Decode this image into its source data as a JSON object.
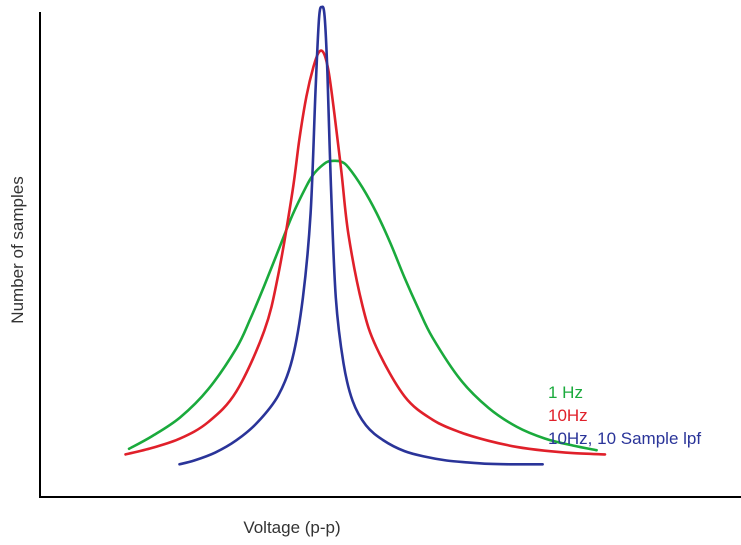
{
  "chart_data": {
    "type": "line",
    "title": "",
    "xlabel": "Voltage (p-p)",
    "ylabel": "Number of samples",
    "grid": false,
    "xlim": [
      0,
      100
    ],
    "ylim": [
      0,
      100
    ],
    "legend_position": "right",
    "series": [
      {
        "name": "1 Hz",
        "color": "#1aaa3c",
        "x": [
          12.7,
          16,
          20,
          24,
          28,
          30,
          32,
          34,
          36,
          38,
          39,
          40,
          41,
          42,
          43,
          44,
          46,
          48,
          50,
          52,
          54,
          56,
          60,
          64,
          68,
          72,
          76,
          79.4
        ],
        "y": [
          5.8,
          8.5,
          12.5,
          18.5,
          27.2,
          33.5,
          40.6,
          48.1,
          55.6,
          61.8,
          64.3,
          65.9,
          67.0,
          67.2,
          67.0,
          65.8,
          61.5,
          56.1,
          49.6,
          42.3,
          35.6,
          29.5,
          20.5,
          14.5,
          10.5,
          8.0,
          6.5,
          5.5
        ]
      },
      {
        "name": "10Hz",
        "color": "#e0202a",
        "x": [
          12.2,
          16,
          20,
          24,
          28,
          32,
          34,
          36,
          37,
          38,
          39,
          39.8,
          40.5,
          41.2,
          42,
          43,
          44,
          46,
          48,
          52,
          56,
          60,
          64,
          68,
          72,
          76,
          80.6
        ],
        "y": [
          4.6,
          6.0,
          8.0,
          11.5,
          18.0,
          31.0,
          43.0,
          60.5,
          71.8,
          80.9,
          87.2,
          90.4,
          90.1,
          86.0,
          77.2,
          64.8,
          51.5,
          36.3,
          27.4,
          17.0,
          12.0,
          9.3,
          7.5,
          6.2,
          5.4,
          4.9,
          4.6
        ]
      },
      {
        "name": "10Hz, 10 Sample lpf",
        "color": "#2a3499",
        "x": [
          19.9,
          22,
          25,
          28,
          31,
          34,
          36,
          37.5,
          38.6,
          39.3,
          39.8,
          40.2,
          40.6,
          41.0,
          41.5,
          42.2,
          43.3,
          44.6,
          46.5,
          49,
          52,
          55,
          58,
          61,
          64,
          67,
          71.7
        ],
        "y": [
          2.5,
          3.3,
          5.0,
          7.6,
          11.4,
          17.2,
          25.0,
          38.0,
          56.0,
          82.0,
          97.5,
          100.0,
          98.0,
          86.0,
          62.0,
          38.0,
          24.0,
          16.0,
          10.8,
          7.6,
          5.3,
          4.1,
          3.3,
          2.9,
          2.6,
          2.5,
          2.5
        ]
      }
    ]
  }
}
